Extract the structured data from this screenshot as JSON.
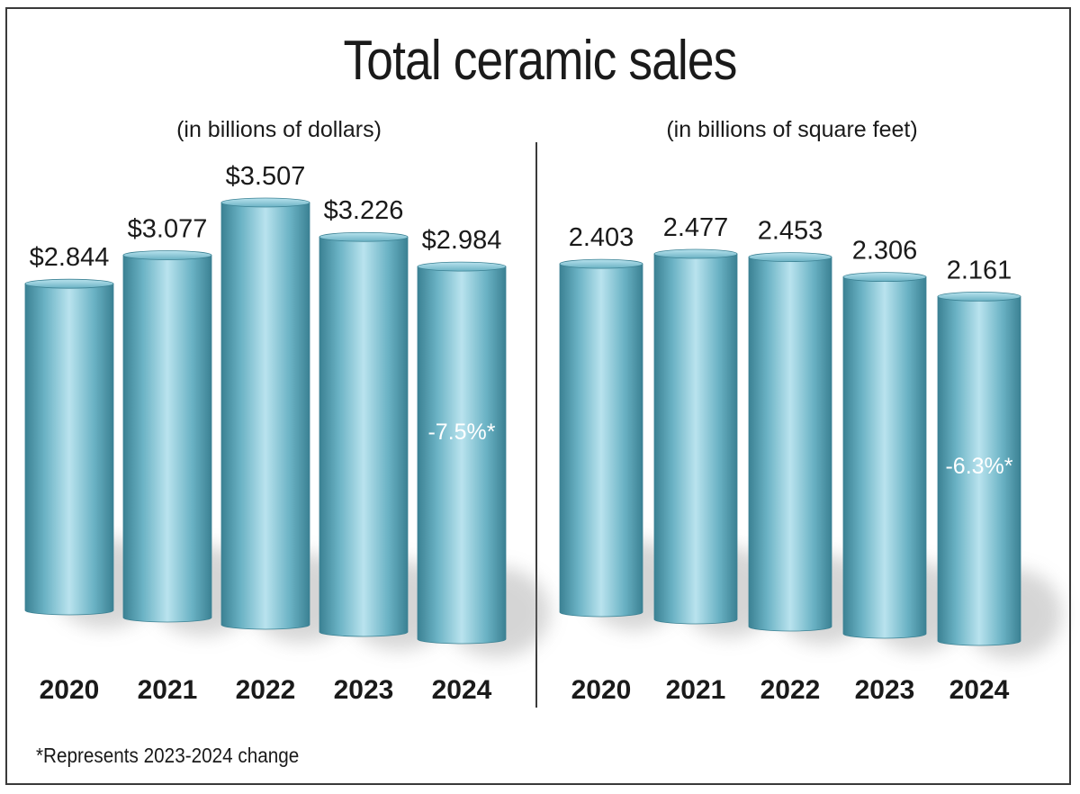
{
  "title": "Total ceramic sales",
  "footnote": "*Represents 2023-2024 change",
  "colors": {
    "bar": "#6ab2c4",
    "bar_light": "#b9e3ee",
    "bar_dark": "#3b8193",
    "text": "#1a1a1a",
    "shadow": "#8a8a8a"
  },
  "chart_data": [
    {
      "type": "bar",
      "title": "(in billions of dollars)",
      "categories": [
        "2020",
        "2021",
        "2022",
        "2023",
        "2024"
      ],
      "values": [
        2.844,
        3.077,
        3.507,
        3.226,
        2.984
      ],
      "value_labels": [
        "$2.844",
        "$3.077",
        "$3.507",
        "$3.226",
        "$2.984"
      ],
      "annotation": {
        "category": "2024",
        "text": "-7.5%*"
      },
      "ylabel": "Billions of dollars",
      "ylim": [
        0,
        3.6
      ],
      "grid": false
    },
    {
      "type": "bar",
      "title": "(in billions of square feet)",
      "categories": [
        "2020",
        "2021",
        "2022",
        "2023",
        "2024"
      ],
      "values": [
        2.403,
        2.477,
        2.453,
        2.306,
        2.161
      ],
      "value_labels": [
        "2.403",
        "2.477",
        "2.453",
        "2.306",
        "2.161"
      ],
      "annotation": {
        "category": "2024",
        "text": "-6.3%*"
      },
      "ylabel": "Billions of square feet",
      "ylim": [
        0,
        2.6
      ],
      "grid": false
    }
  ]
}
